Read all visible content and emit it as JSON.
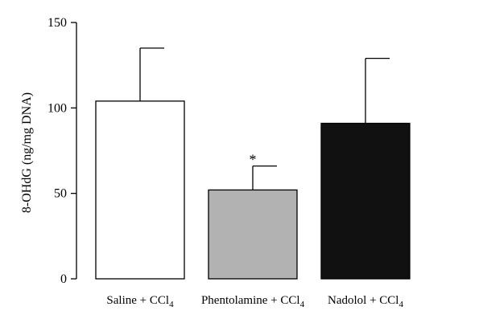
{
  "chart_data": {
    "type": "bar",
    "title": "",
    "ylabel": "8-OHdG (ng/mg DNA)",
    "xlabel": "",
    "ylim": [
      0,
      150
    ],
    "yticks": [
      0,
      50,
      100,
      150
    ],
    "grid": false,
    "categories": [
      {
        "label": "Saline + CCl",
        "subscript": "4"
      },
      {
        "label": "Phentolamine + CCl",
        "subscript": "4"
      },
      {
        "label": "Nadolol + CCl",
        "subscript": "4"
      }
    ],
    "values": [
      104,
      52,
      91
    ],
    "errors": [
      31,
      14,
      38
    ],
    "colors": [
      "#ffffff",
      "#b2b2b2",
      "#111111"
    ],
    "annotations": [
      "",
      "*",
      ""
    ]
  }
}
